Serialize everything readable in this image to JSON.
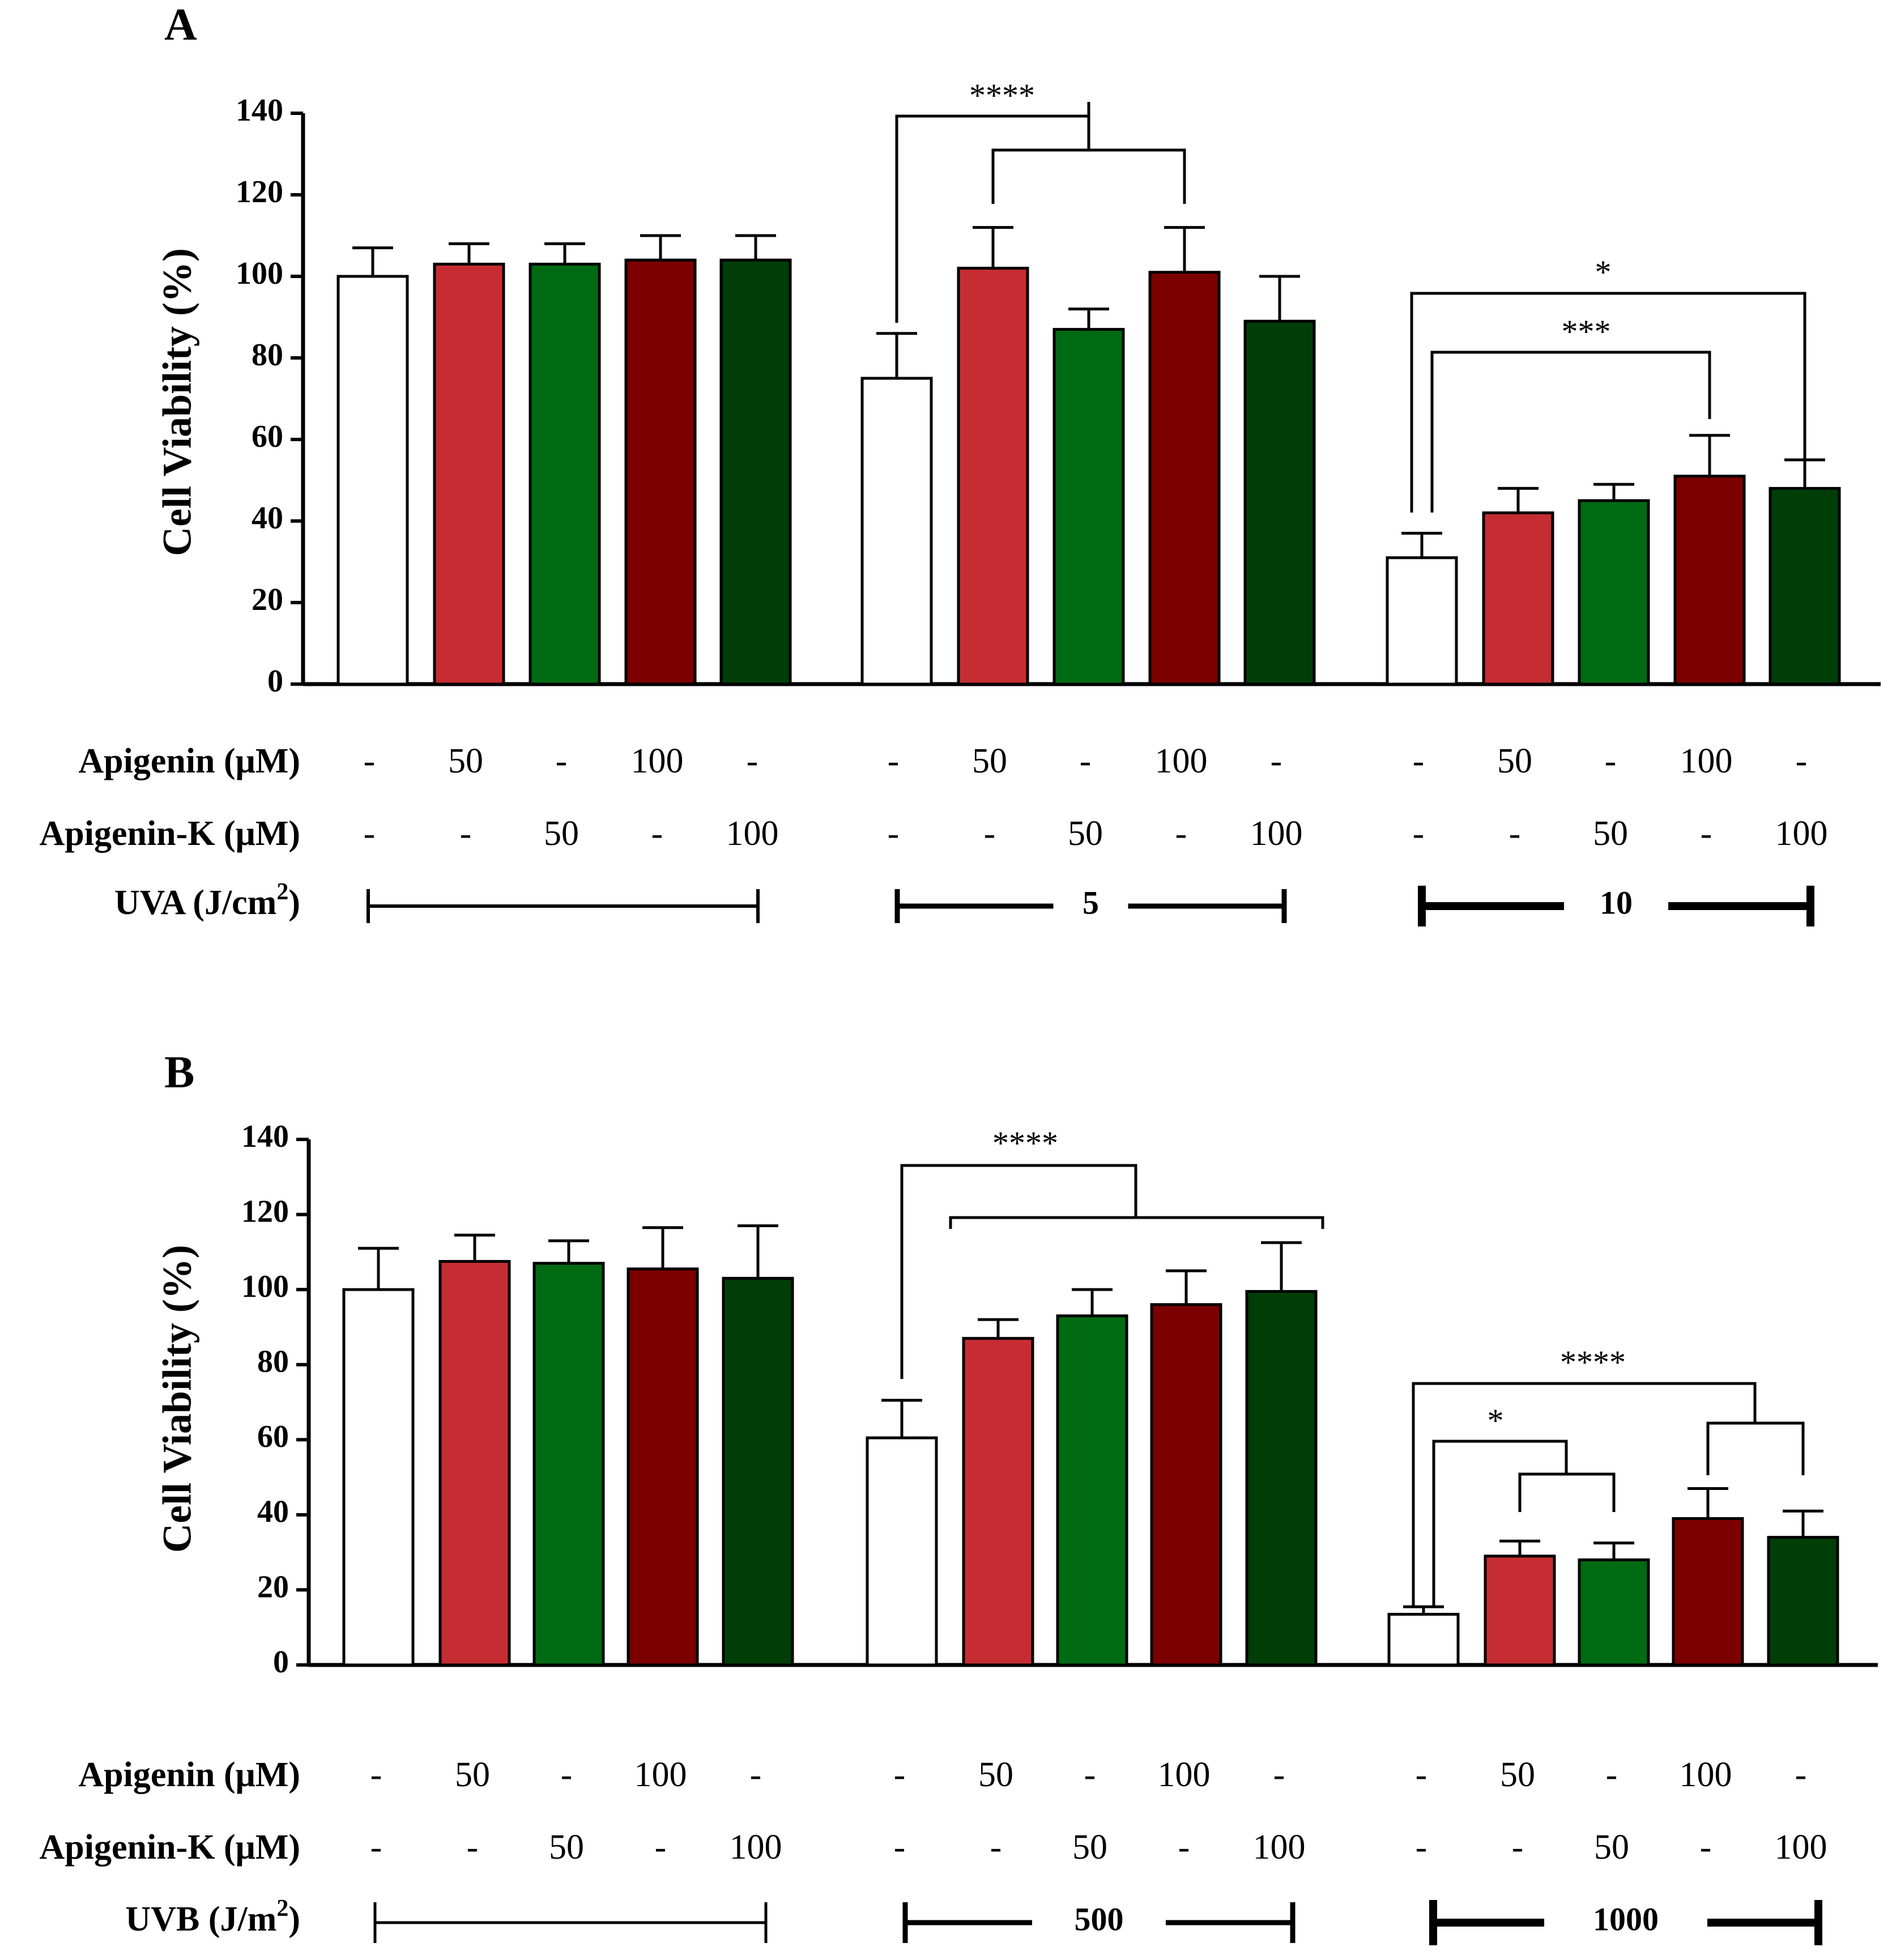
{
  "colors": {
    "control": "#ffffff",
    "apigenin_50": "#c62d32",
    "apigenin_k_50": "#006b13",
    "apigenin_100": "#7c0000",
    "apigenin_k_100": "#003e08"
  },
  "chart_data": [
    {
      "type": "bar",
      "panel": "A",
      "ylabel": "Cell Viability (%)",
      "ylim": [
        0,
        140
      ],
      "yticks": [
        "0",
        "20",
        "40",
        "60",
        "80",
        "100",
        "120",
        "140"
      ],
      "treatments": [
        "Control",
        "Apigenin 50",
        "Apigenin-K 50",
        "Apigenin 100",
        "Apigenin-K 100"
      ],
      "groups": [
        {
          "dose": "",
          "values": [
            100,
            103,
            103,
            104,
            104
          ],
          "errors": [
            7,
            5,
            5,
            6,
            6
          ]
        },
        {
          "dose": "5",
          "values": [
            75,
            102,
            87,
            101,
            89
          ],
          "errors": [
            11,
            10,
            5,
            11,
            11
          ]
        },
        {
          "dose": "10",
          "values": [
            31,
            42,
            45,
            51,
            48
          ],
          "errors": [
            6,
            6,
            4,
            10,
            7
          ]
        }
      ],
      "rows": [
        {
          "label": "Apigenin (μM)",
          "cells": [
            "-",
            "50",
            "-",
            "100",
            "-",
            "-",
            "50",
            "-",
            "100",
            "-",
            "-",
            "50",
            "-",
            "100",
            "-"
          ]
        },
        {
          "label": "Apigenin-K (μM)",
          "cells": [
            "-",
            "-",
            "50",
            "-",
            "100",
            "-",
            "-",
            "50",
            "-",
            "100",
            "-",
            "-",
            "50",
            "-",
            "100"
          ]
        }
      ],
      "irradiation": {
        "label": "UVA (J/cm",
        "sup": "2",
        "close": ")"
      },
      "significance": [
        {
          "label": "****",
          "between": "5 control vs 5 Apigenin 50 / 100"
        },
        {
          "label": "*",
          "between": "10 control vs 10 Apigenin-K 100"
        },
        {
          "label": "***",
          "between": "10 control vs 10 Apigenin 100"
        }
      ]
    },
    {
      "type": "bar",
      "panel": "B",
      "ylabel": "Cell Viability (%)",
      "ylim": [
        0,
        140
      ],
      "yticks": [
        "0",
        "20",
        "40",
        "60",
        "80",
        "100",
        "120",
        "140"
      ],
      "treatments": [
        "Control",
        "Apigenin 50",
        "Apigenin-K 50",
        "Apigenin 100",
        "Apigenin-K 100"
      ],
      "groups": [
        {
          "dose": "",
          "values": [
            100,
            107.5,
            107,
            105.5,
            103
          ],
          "errors": [
            11,
            7,
            6,
            11,
            14
          ]
        },
        {
          "dose": "500",
          "values": [
            60.5,
            87,
            93,
            96,
            99.5
          ],
          "errors": [
            10,
            5,
            7,
            9,
            13
          ]
        },
        {
          "dose": "1000",
          "values": [
            13.5,
            29,
            28,
            39,
            34
          ],
          "errors": [
            2,
            4,
            4.5,
            8,
            7
          ]
        }
      ],
      "rows": [
        {
          "label": "Apigenin (μM)",
          "cells": [
            "-",
            "50",
            "-",
            "100",
            "-",
            "-",
            "50",
            "-",
            "100",
            "-",
            "-",
            "50",
            "-",
            "100",
            "-"
          ]
        },
        {
          "label": "Apigenin-K (μM)",
          "cells": [
            "-",
            "-",
            "50",
            "-",
            "100",
            "-",
            "-",
            "50",
            "-",
            "100",
            "-",
            "-",
            "50",
            "-",
            "100"
          ]
        }
      ],
      "irradiation": {
        "label": "UVB (J/m",
        "sup": "2",
        "close": ")"
      },
      "significance": [
        {
          "label": "****",
          "between": "500 control vs 500 treatments"
        },
        {
          "label": "****",
          "between": "1000 control vs 1000 100 μM treatments"
        },
        {
          "label": "*",
          "between": "1000 control vs 1000 50 μM treatments"
        }
      ]
    }
  ]
}
